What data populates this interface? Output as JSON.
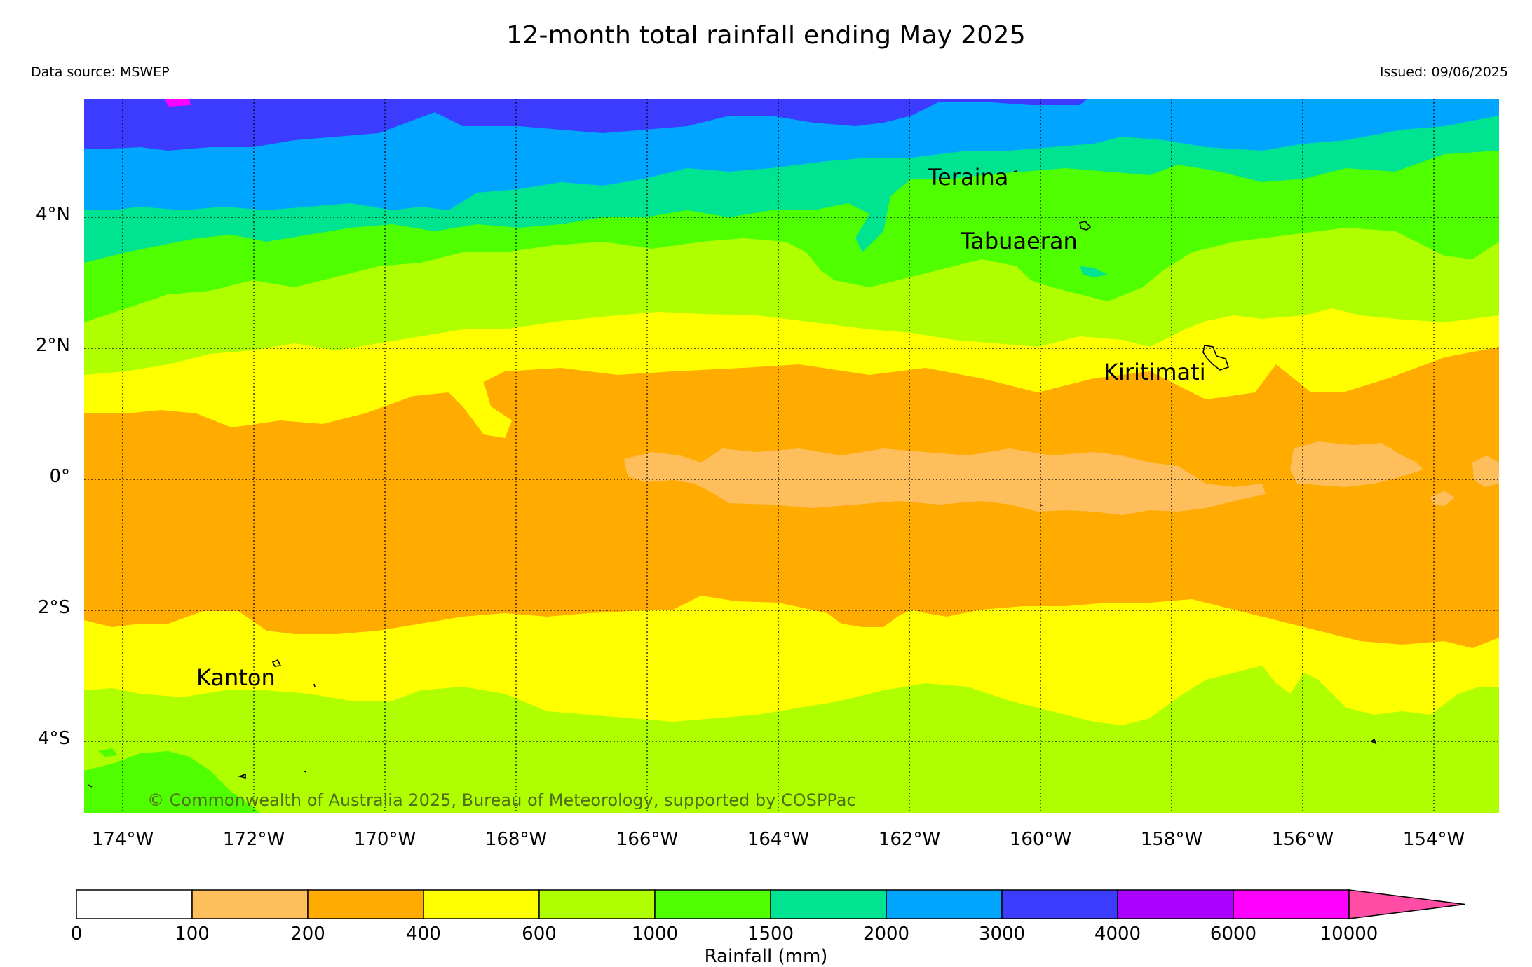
{
  "title": "12-month total rainfall ending May 2025",
  "data_source": "Data source: MSWEP",
  "issued": "Issued: 09/06/2025",
  "copyright": "© Commonwealth of Australia 2025, Bureau of Meteorology, supported by COSPPac",
  "lat_labels": [
    "4°N",
    "2°N",
    "0°",
    "2°S",
    "4°S"
  ],
  "lon_labels": [
    "174°W",
    "172°W",
    "170°W",
    "168°W",
    "166°W",
    "164°W",
    "162°W",
    "160°W",
    "158°W",
    "156°W",
    "154°W"
  ],
  "places": {
    "teraina": "Teraina",
    "tabuaeran": "Tabuaeran",
    "kiritimati": "Kiritimati",
    "kanton": "Kanton"
  },
  "colorbar": {
    "title": "Rainfall (mm)",
    "ticks": [
      "0",
      "100",
      "200",
      "400",
      "600",
      "1000",
      "1500",
      "2000",
      "3000",
      "4000",
      "6000",
      "10000"
    ],
    "colors": [
      "#ffffff",
      "#ffbe5c",
      "#ffab00",
      "#ffff00",
      "#afff00",
      "#4fff00",
      "#00e491",
      "#00a5ff",
      "#3c3cff",
      "#aa00ff",
      "#ff00ff",
      "#ff4ca4"
    ]
  }
}
